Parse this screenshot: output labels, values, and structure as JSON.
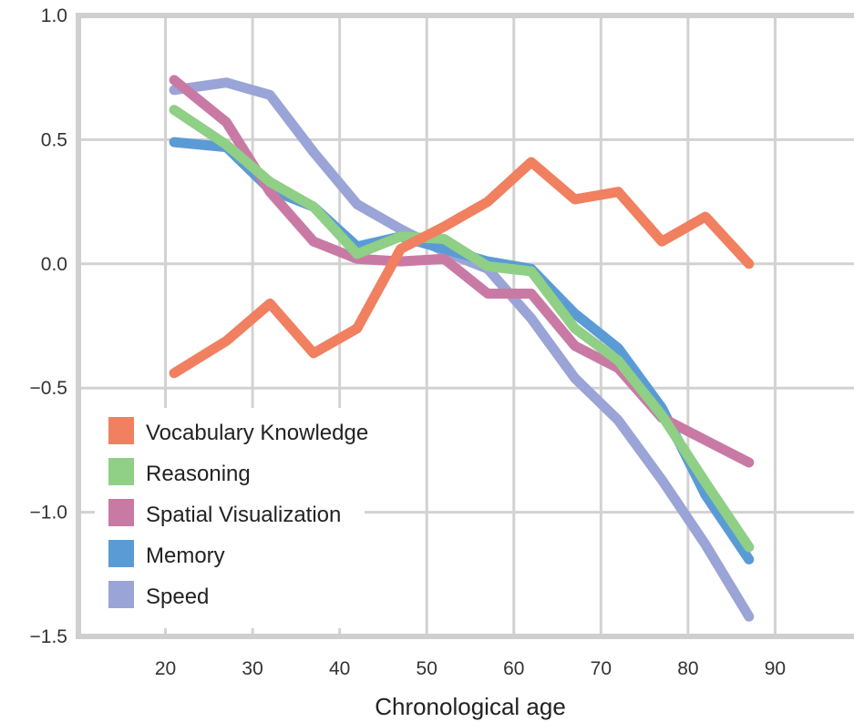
{
  "chart_data": {
    "type": "line",
    "xlabel": "Chronological age",
    "ylabel": "",
    "xlim": [
      10,
      100
    ],
    "ylim": [
      -1.5,
      1.0
    ],
    "x_ticks": [
      "20",
      "30",
      "40",
      "50",
      "60",
      "70",
      "80",
      "90"
    ],
    "y_ticks": [
      "1.0",
      "0.5",
      "0.0",
      "−0.5",
      "−1.0",
      "−1.5"
    ],
    "y_tick_values": [
      1.0,
      0.5,
      0.0,
      -0.5,
      -1.0,
      -1.5
    ],
    "x_tick_values": [
      20,
      30,
      40,
      50,
      60,
      70,
      80,
      90
    ],
    "grid": true,
    "legend_position": "bottom-left",
    "x": [
      21,
      27,
      32,
      37,
      42,
      47,
      52,
      57,
      62,
      67,
      72,
      77,
      82,
      87
    ],
    "series": [
      {
        "name": "Speed",
        "color": "#9aa4d6",
        "values": [
          0.7,
          0.73,
          0.68,
          0.45,
          0.24,
          0.14,
          0.05,
          -0.02,
          -0.22,
          -0.46,
          -0.63,
          -0.87,
          -1.13,
          -1.42
        ]
      },
      {
        "name": "Memory",
        "color": "#5b9bd5",
        "values": [
          0.49,
          0.47,
          0.3,
          0.23,
          0.07,
          0.11,
          0.06,
          0.01,
          -0.02,
          -0.2,
          -0.34,
          -0.58,
          -0.93,
          -1.19
        ]
      },
      {
        "name": "Spatial Visualization",
        "color": "#c97aa4",
        "values": [
          0.74,
          0.57,
          0.29,
          0.09,
          0.02,
          0.01,
          0.02,
          -0.12,
          -0.12,
          -0.33,
          -0.42,
          -0.62,
          -0.71,
          -0.8
        ]
      },
      {
        "name": "Reasoning",
        "color": "#8fcf86",
        "values": [
          0.62,
          0.48,
          0.33,
          0.23,
          0.04,
          0.11,
          0.1,
          -0.01,
          -0.03,
          -0.26,
          -0.39,
          -0.61,
          -0.88,
          -1.14
        ]
      },
      {
        "name": "Vocabulary Knowledge",
        "color": "#f08060",
        "values": [
          -0.44,
          -0.31,
          -0.16,
          -0.36,
          -0.26,
          0.06,
          0.15,
          0.25,
          0.41,
          0.26,
          0.29,
          0.09,
          0.19,
          0.0
        ]
      }
    ],
    "legend": [
      {
        "name": "Vocabulary Knowledge",
        "color": "#f08060"
      },
      {
        "name": "Reasoning",
        "color": "#8fcf86"
      },
      {
        "name": "Spatial Visualization",
        "color": "#c97aa4"
      },
      {
        "name": "Memory",
        "color": "#5b9bd5"
      },
      {
        "name": "Speed",
        "color": "#9aa4d6"
      }
    ]
  }
}
